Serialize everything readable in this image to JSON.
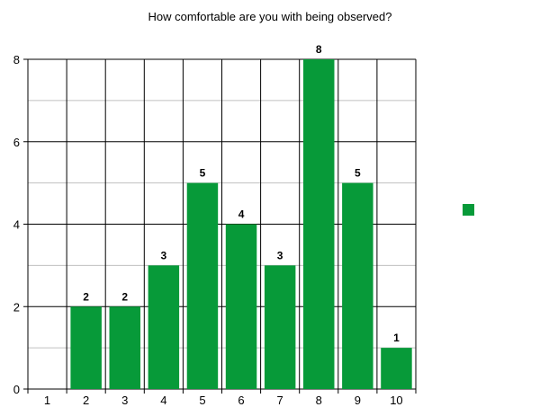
{
  "chart_data": {
    "type": "bar",
    "title": "How comfortable are you with being observed?",
    "xlabel": "",
    "ylabel": "",
    "categories": [
      "1",
      "2",
      "3",
      "4",
      "5",
      "6",
      "7",
      "8",
      "9",
      "10"
    ],
    "values": [
      0,
      2,
      2,
      3,
      5,
      4,
      3,
      8,
      5,
      1
    ],
    "value_labels": [
      "",
      "2",
      "2",
      "3",
      "5",
      "4",
      "3",
      "8",
      "5",
      "1"
    ],
    "ylim": [
      0,
      8
    ],
    "y_ticks": [
      "0",
      "2",
      "4",
      "6",
      "8"
    ],
    "grid": true,
    "legend": {
      "placement": "right",
      "entries": [
        ""
      ]
    },
    "colors": {
      "bar": "#079a39",
      "grid_major": "#000000",
      "grid_minor": "#c0c0c0"
    }
  }
}
